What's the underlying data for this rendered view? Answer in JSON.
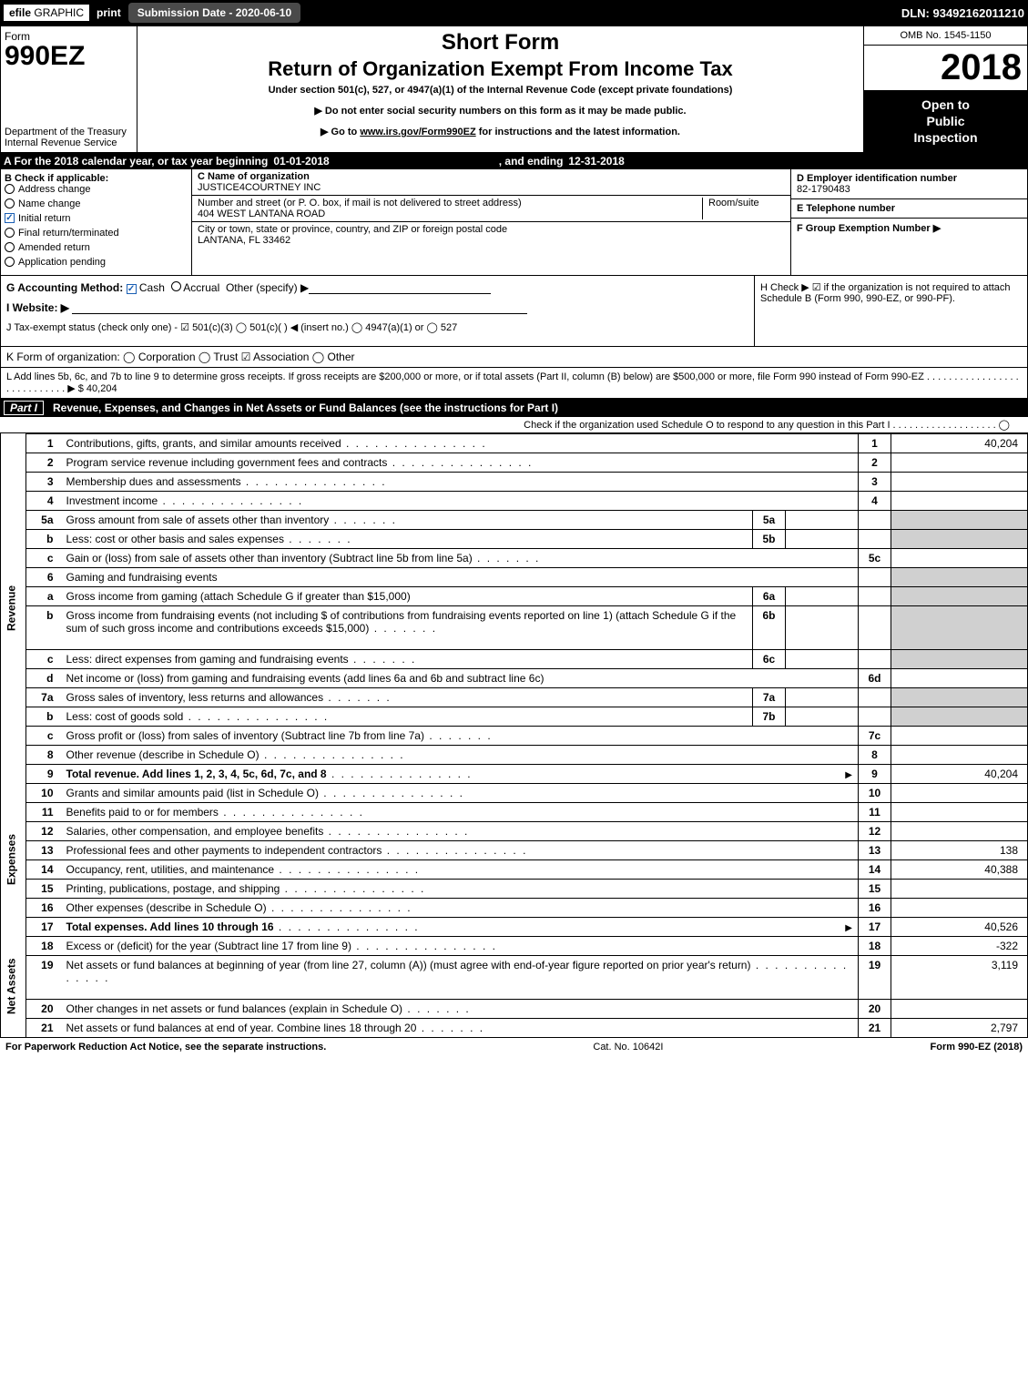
{
  "topbar": {
    "efile": "efile",
    "graphic": "GRAPHIC",
    "print": "print",
    "submission_label": "Submission Date - 2020-06-10",
    "dln": "DLN: 93492162011210"
  },
  "header": {
    "form_word": "Form",
    "form_number": "990EZ",
    "dept": "Department of the Treasury",
    "irs": "Internal Revenue Service",
    "short_form": "Short Form",
    "main_title": "Return of Organization Exempt From Income Tax",
    "sub_title": "Under section 501(c), 527, or 4947(a)(1) of the Internal Revenue Code (except private foundations)",
    "instr1": "▶ Do not enter social security numbers on this form as it may be made public.",
    "instr2_pre": "▶ Go to ",
    "instr2_link": "www.irs.gov/Form990EZ",
    "instr2_post": " for instructions and the latest information.",
    "omb": "OMB No. 1545-1150",
    "tax_year": "2018",
    "open1": "Open to",
    "open2": "Public",
    "open3": "Inspection"
  },
  "period": {
    "label_a": "A  For the 2018 calendar year, or tax year beginning ",
    "begin": "01-01-2018",
    "mid": " , and ending ",
    "end": "12-31-2018"
  },
  "boxB": {
    "title": "B  Check if applicable:",
    "items": [
      {
        "label": "Address change",
        "checked": false,
        "style": "radio"
      },
      {
        "label": "Name change",
        "checked": false,
        "style": "radio"
      },
      {
        "label": "Initial return",
        "checked": true,
        "style": "check"
      },
      {
        "label": "Final return/terminated",
        "checked": false,
        "style": "radio"
      },
      {
        "label": "Amended return",
        "checked": false,
        "style": "radio"
      },
      {
        "label": "Application pending",
        "checked": false,
        "style": "radio"
      }
    ]
  },
  "boxC": {
    "name_lbl": "C Name of organization",
    "name_val": "JUSTICE4COURTNEY INC",
    "addr_lbl": "Number and street (or P. O. box, if mail is not delivered to street address)",
    "room_lbl": "Room/suite",
    "addr_val": "404 WEST LANTANA ROAD",
    "city_lbl": "City or town, state or province, country, and ZIP or foreign postal code",
    "city_val": "LANTANA, FL  33462"
  },
  "boxD": {
    "ein_lbl": "D Employer identification number",
    "ein_val": "82-1790483",
    "tel_lbl": "E Telephone number",
    "tel_val": "",
    "grp_lbl": "F Group Exemption Number  ▶",
    "grp_val": ""
  },
  "secG": {
    "g_label": "G Accounting Method:",
    "g_cash": "Cash",
    "g_accrual": "Accrual",
    "g_other": "Other (specify) ▶",
    "h_text": "H  Check ▶  ☑  if the organization is not required to attach Schedule B (Form 990, 990-EZ, or 990-PF).",
    "i_label": "I Website: ▶",
    "j_label": "J Tax-exempt status (check only one) -  ☑ 501(c)(3)  ◯ 501(c)(  ) ◀ (insert no.)  ◯ 4947(a)(1) or  ◯ 527",
    "k_label": "K Form of organization:   ◯ Corporation   ◯ Trust   ☑ Association   ◯ Other"
  },
  "secL": {
    "text": "L Add lines 5b, 6c, and 7b to line 9 to determine gross receipts. If gross receipts are $200,000 or more, or if total assets (Part II, column (B) below) are $500,000 or more, file Form 990 instead of Form 990-EZ  .  .  .  .  .  .  .  .  .  .  .  .  .  .  .  .  .  .  .  .  .  .  .  .  .  .  .  .  ▶ $ 40,204"
  },
  "part1": {
    "tag": "Part I",
    "title": "Revenue, Expenses, and Changes in Net Assets or Fund Balances (see the instructions for Part I)",
    "sub": "Check if the organization used Schedule O to respond to any question in this Part I .  .  .  .  .  .  .  .  .  .  .  .  .  .  .  .  .  .  .  ◯"
  },
  "sections": {
    "revenue_label": "Revenue",
    "expenses_label": "Expenses",
    "netassets_label": "Net Assets"
  },
  "rows": [
    {
      "sec": "rev",
      "n": "1",
      "desc": "Contributions, gifts, grants, and similar amounts received",
      "dots": true,
      "rn": "1",
      "rv": "40,204"
    },
    {
      "sec": "rev",
      "n": "2",
      "desc": "Program service revenue including government fees and contracts",
      "dots": true,
      "rn": "2",
      "rv": ""
    },
    {
      "sec": "rev",
      "n": "3",
      "desc": "Membership dues and assessments",
      "dots": true,
      "rn": "3",
      "rv": ""
    },
    {
      "sec": "rev",
      "n": "4",
      "desc": "Investment income",
      "dots": true,
      "rn": "4",
      "rv": ""
    },
    {
      "sec": "rev",
      "n": "5a",
      "desc": "Gross amount from sale of assets other than inventory",
      "dots_sm": true,
      "in_n": "5a",
      "in_v": "",
      "shade": true
    },
    {
      "sec": "rev",
      "n": "b",
      "desc": "Less: cost or other basis and sales expenses",
      "dots_sm": true,
      "in_n": "5b",
      "in_v": "",
      "shade": true
    },
    {
      "sec": "rev",
      "n": "c",
      "desc": "Gain or (loss) from sale of assets other than inventory (Subtract line 5b from line 5a)",
      "dots_sm": true,
      "rn": "5c",
      "rv": ""
    },
    {
      "sec": "rev",
      "n": "6",
      "desc": "Gaming and fundraising events",
      "shade": true,
      "nodata": true
    },
    {
      "sec": "rev",
      "n": "a",
      "desc": "Gross income from gaming (attach Schedule G if greater than $15,000)",
      "in_n": "6a",
      "in_v": "",
      "shade": true
    },
    {
      "sec": "rev",
      "n": "b",
      "desc": "Gross income from fundraising events (not including $                 of contributions from fundraising events reported on line 1) (attach Schedule G if the sum of such gross income and contributions exceeds $15,000)",
      "dots_sm": true,
      "in_n": "6b",
      "in_v": "",
      "shade": true,
      "tall": true
    },
    {
      "sec": "rev",
      "n": "c",
      "desc": "Less: direct expenses from gaming and fundraising events",
      "dots_sm": true,
      "in_n": "6c",
      "in_v": "",
      "shade": true
    },
    {
      "sec": "rev",
      "n": "d",
      "desc": "Net income or (loss) from gaming and fundraising events (add lines 6a and 6b and subtract line 6c)",
      "rn": "6d",
      "rv": ""
    },
    {
      "sec": "rev",
      "n": "7a",
      "desc": "Gross sales of inventory, less returns and allowances",
      "dots_sm": true,
      "in_n": "7a",
      "in_v": "",
      "shade": true
    },
    {
      "sec": "rev",
      "n": "b",
      "desc": "Less: cost of goods sold",
      "dots": true,
      "in_n": "7b",
      "in_v": "",
      "shade": true
    },
    {
      "sec": "rev",
      "n": "c",
      "desc": "Gross profit or (loss) from sales of inventory (Subtract line 7b from line 7a)",
      "dots_sm": true,
      "rn": "7c",
      "rv": ""
    },
    {
      "sec": "rev",
      "n": "8",
      "desc": "Other revenue (describe in Schedule O)",
      "dots": true,
      "rn": "8",
      "rv": ""
    },
    {
      "sec": "rev",
      "n": "9",
      "desc": "Total revenue. Add lines 1, 2, 3, 4, 5c, 6d, 7c, and 8",
      "dots": true,
      "arrow": true,
      "rn": "9",
      "rv": "40,204",
      "bold": true
    },
    {
      "sec": "exp",
      "n": "10",
      "desc": "Grants and similar amounts paid (list in Schedule O)",
      "dots": true,
      "rn": "10",
      "rv": ""
    },
    {
      "sec": "exp",
      "n": "11",
      "desc": "Benefits paid to or for members",
      "dots": true,
      "rn": "11",
      "rv": ""
    },
    {
      "sec": "exp",
      "n": "12",
      "desc": "Salaries, other compensation, and employee benefits",
      "dots": true,
      "rn": "12",
      "rv": ""
    },
    {
      "sec": "exp",
      "n": "13",
      "desc": "Professional fees and other payments to independent contractors",
      "dots": true,
      "rn": "13",
      "rv": "138"
    },
    {
      "sec": "exp",
      "n": "14",
      "desc": "Occupancy, rent, utilities, and maintenance",
      "dots": true,
      "rn": "14",
      "rv": "40,388"
    },
    {
      "sec": "exp",
      "n": "15",
      "desc": "Printing, publications, postage, and shipping",
      "dots": true,
      "rn": "15",
      "rv": ""
    },
    {
      "sec": "exp",
      "n": "16",
      "desc": "Other expenses (describe in Schedule O)",
      "dots": true,
      "rn": "16",
      "rv": ""
    },
    {
      "sec": "exp",
      "n": "17",
      "desc": "Total expenses. Add lines 10 through 16",
      "dots": true,
      "arrow": true,
      "rn": "17",
      "rv": "40,526",
      "bold": true
    },
    {
      "sec": "net",
      "n": "18",
      "desc": "Excess or (deficit) for the year (Subtract line 17 from line 9)",
      "dots": true,
      "rn": "18",
      "rv": "-322"
    },
    {
      "sec": "net",
      "n": "19",
      "desc": "Net assets or fund balances at beginning of year (from line 27, column (A)) (must agree with end-of-year figure reported on prior year's return)",
      "dots": true,
      "rn": "19",
      "rv": "3,119",
      "tall": true
    },
    {
      "sec": "net",
      "n": "20",
      "desc": "Other changes in net assets or fund balances (explain in Schedule O)",
      "dots_sm": true,
      "rn": "20",
      "rv": ""
    },
    {
      "sec": "net",
      "n": "21",
      "desc": "Net assets or fund balances at end of year. Combine lines 18 through 20",
      "dots_sm": true,
      "rn": "21",
      "rv": "2,797"
    }
  ],
  "footer": {
    "left": "For Paperwork Reduction Act Notice, see the separate instructions.",
    "mid": "Cat. No. 10642I",
    "right": "Form 990-EZ (2018)"
  }
}
